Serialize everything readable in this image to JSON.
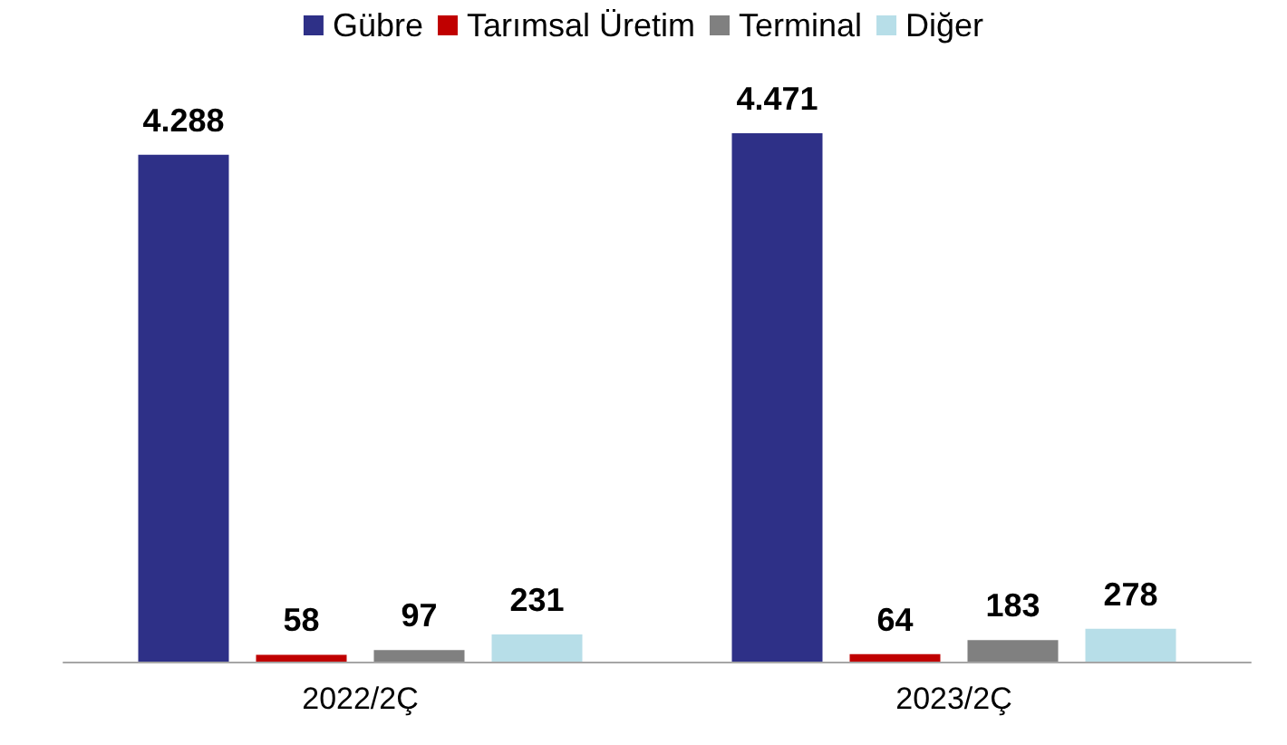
{
  "chart_data": {
    "type": "bar",
    "categories": [
      "2022/2Ç",
      "2023/2Ç"
    ],
    "series": [
      {
        "name": "Gübre",
        "color": "#2e3087",
        "values": [
          4288,
          4471
        ],
        "value_labels": [
          "4.288",
          "4.471"
        ]
      },
      {
        "name": "Tarımsal Üretim",
        "color": "#c00000",
        "values": [
          58,
          64
        ],
        "value_labels": [
          "58",
          "64"
        ]
      },
      {
        "name": "Terminal",
        "color": "#808080",
        "values": [
          97,
          183
        ],
        "value_labels": [
          "97",
          "183"
        ]
      },
      {
        "name": "Diğer",
        "color": "#b7dee8",
        "values": [
          231,
          278
        ],
        "value_labels": [
          "231",
          "278"
        ]
      }
    ],
    "legend": "top"
  }
}
